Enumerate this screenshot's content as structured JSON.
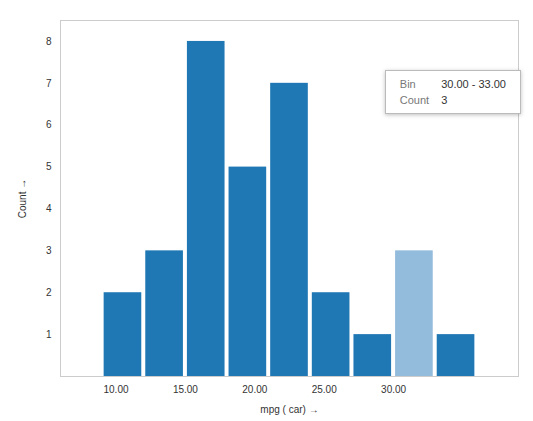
{
  "chart_data": {
    "type": "histogram",
    "bins": [
      9,
      12,
      15,
      18,
      21,
      24,
      27,
      30,
      33,
      36
    ],
    "values": [
      2,
      3,
      8,
      5,
      7,
      2,
      1,
      3,
      1
    ],
    "colors": [
      "#1f77b4",
      "#1f77b4",
      "#1f77b4",
      "#1f77b4",
      "#1f77b4",
      "#1f77b4",
      "#1f77b4",
      "#93bbdc",
      "#1f77b4"
    ],
    "x_label": "mpg ( car)",
    "y_label": "Count",
    "xlim": [
      6,
      39
    ],
    "xticks": [
      {
        "value": 10,
        "label": "10.00"
      },
      {
        "value": 15,
        "label": "15.00"
      },
      {
        "value": 20,
        "label": "20.00"
      },
      {
        "value": 25,
        "label": "25.00"
      },
      {
        "value": 30,
        "label": "30.00"
      }
    ],
    "ylim": [
      0,
      8.5
    ],
    "yticks": [
      1,
      2,
      3,
      4,
      5,
      6,
      7,
      8
    ],
    "grid": false,
    "tooltip": {
      "rows": [
        [
          "Bin",
          "30.00 - 33.00"
        ],
        [
          "Count",
          "3"
        ]
      ]
    }
  }
}
